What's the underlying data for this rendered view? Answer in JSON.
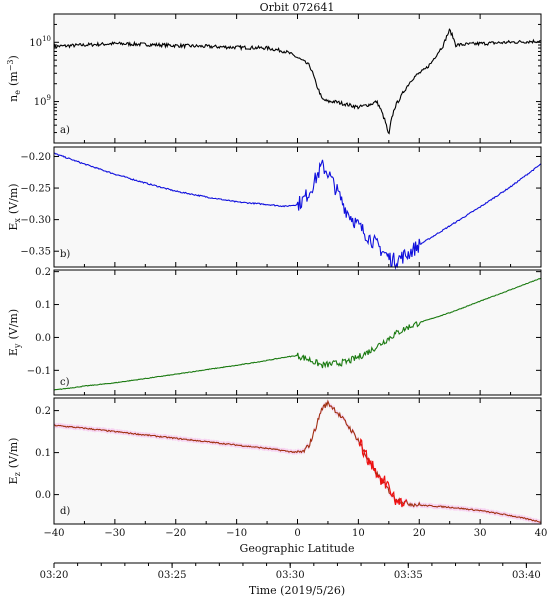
{
  "figure": {
    "title": "Orbit 072641",
    "xlabel": "Geographic Latitude",
    "time_xlabel": "Time (2019/5/26)",
    "colors": {
      "ne": "#000000",
      "ex": "#1010dd",
      "ey": "#1a7a10",
      "ez": "#a03010",
      "ez_highlight": "#ee1111",
      "ez_band": "#f6c6f0",
      "panel_bg": "#f8f8f8"
    }
  },
  "chart_data": [
    {
      "type": "line",
      "panel_label": "a)",
      "ylabel_main": "n",
      "ylabel_sub": "e",
      "ylabel_unit": "(m",
      "ylabel_unit_sup": "−3",
      "ylabel_unit_end": ")",
      "yscale": "log",
      "ylim": [
        200000000.0,
        30000000000.0
      ],
      "yticks": [
        {
          "value": 1000000000.0,
          "base": "10",
          "exp": "9"
        },
        {
          "value": 10000000000.0,
          "base": "10",
          "exp": "10"
        }
      ],
      "xlim": [
        -40,
        40
      ],
      "series": [
        {
          "color": "#000000",
          "x": [
            -40,
            -35,
            -30,
            -25,
            -20,
            -15,
            -10,
            -5,
            -2,
            0,
            2,
            3,
            4,
            5,
            6,
            8,
            10,
            12,
            13,
            14,
            15,
            16,
            17,
            18,
            19,
            20,
            21,
            22,
            23,
            24,
            25,
            26,
            30,
            35,
            40
          ],
          "y": [
            8500000000.0,
            9000000000.0,
            9500000000.0,
            9200000000.0,
            8800000000.0,
            8500000000.0,
            8200000000.0,
            8000000000.0,
            7000000000.0,
            5500000000.0,
            4000000000.0,
            2000000000.0,
            1100000000.0,
            1000000000.0,
            1000000000.0,
            900000000.0,
            800000000.0,
            900000000.0,
            1000000000.0,
            600000000.0,
            250000000.0,
            800000000.0,
            1200000000.0,
            1800000000.0,
            2500000000.0,
            3000000000.0,
            3500000000.0,
            4500000000.0,
            6500000000.0,
            9000000000.0,
            16000000000.0,
            9000000000.0,
            9500000000.0,
            10000000000.0,
            10500000000.0
          ]
        }
      ]
    },
    {
      "type": "line",
      "panel_label": "b)",
      "ylabel_main": "E",
      "ylabel_sub": "x",
      "ylabel_unit": "(V/m)",
      "ylim": [
        -0.375,
        -0.185
      ],
      "yticks": [
        {
          "value": -0.35,
          "label": "−0.35"
        },
        {
          "value": -0.3,
          "label": "−0.30"
        },
        {
          "value": -0.25,
          "label": "−0.25"
        },
        {
          "value": -0.2,
          "label": "−0.20"
        }
      ],
      "xlim": [
        -40,
        40
      ],
      "series": [
        {
          "color": "#1010dd",
          "x": [
            -40,
            -35,
            -30,
            -25,
            -20,
            -15,
            -10,
            -5,
            -2,
            0,
            1,
            2,
            3,
            4,
            5,
            6,
            8,
            10,
            12,
            14,
            15,
            16,
            17,
            18,
            20,
            25,
            30,
            35,
            40
          ],
          "y": [
            -0.195,
            -0.212,
            -0.228,
            -0.242,
            -0.255,
            -0.264,
            -0.272,
            -0.276,
            -0.279,
            -0.276,
            -0.268,
            -0.255,
            -0.235,
            -0.215,
            -0.225,
            -0.245,
            -0.285,
            -0.31,
            -0.33,
            -0.35,
            -0.36,
            -0.365,
            -0.36,
            -0.355,
            -0.34,
            -0.31,
            -0.28,
            -0.248,
            -0.212
          ]
        }
      ]
    },
    {
      "type": "line",
      "panel_label": "c)",
      "ylabel_main": "E",
      "ylabel_sub": "y",
      "ylabel_unit": "(V/m)",
      "ylim": [
        -0.175,
        0.205
      ],
      "yticks": [
        {
          "value": -0.1,
          "label": "−0.1"
        },
        {
          "value": 0.0,
          "label": "0.0"
        },
        {
          "value": 0.1,
          "label": "0.1"
        },
        {
          "value": 0.2,
          "label": "0.2"
        }
      ],
      "xlim": [
        -40,
        40
      ],
      "series": [
        {
          "color": "#1a7a10",
          "x": [
            -40,
            -35,
            -30,
            -25,
            -20,
            -15,
            -10,
            -5,
            -2,
            0,
            2,
            4,
            6,
            8,
            10,
            12,
            14,
            16,
            18,
            20,
            25,
            30,
            35,
            40
          ],
          "y": [
            -0.16,
            -0.148,
            -0.138,
            -0.125,
            -0.112,
            -0.098,
            -0.085,
            -0.07,
            -0.06,
            -0.055,
            -0.068,
            -0.085,
            -0.08,
            -0.075,
            -0.06,
            -0.04,
            -0.015,
            0.01,
            0.03,
            0.045,
            0.075,
            0.11,
            0.145,
            0.18
          ]
        }
      ]
    },
    {
      "type": "line",
      "panel_label": "d)",
      "ylabel_main": "E",
      "ylabel_sub": "z",
      "ylabel_unit": "(V/m)",
      "ylim": [
        -0.07,
        0.23
      ],
      "yticks": [
        {
          "value": 0.0,
          "label": "0.0"
        },
        {
          "value": 0.1,
          "label": "0.1"
        },
        {
          "value": 0.2,
          "label": "0.2"
        }
      ],
      "xlim": [
        -40,
        40
      ],
      "series": [
        {
          "color": "#a03010",
          "x": [
            -40,
            -35,
            -30,
            -25,
            -20,
            -15,
            -10,
            -5,
            -2,
            0,
            1,
            2,
            3,
            4,
            5,
            6,
            8,
            10,
            12,
            14,
            16,
            18,
            20,
            25,
            30,
            35,
            40
          ],
          "y": [
            0.165,
            0.158,
            0.15,
            0.142,
            0.134,
            0.126,
            0.118,
            0.11,
            0.104,
            0.1,
            0.102,
            0.12,
            0.16,
            0.205,
            0.218,
            0.205,
            0.17,
            0.13,
            0.07,
            0.03,
            -0.01,
            -0.02,
            -0.025,
            -0.03,
            -0.038,
            -0.05,
            -0.065
          ]
        }
      ]
    }
  ],
  "xaxis": {
    "ticks": [
      {
        "value": -40,
        "label": "−40"
      },
      {
        "value": -30,
        "label": "−30"
      },
      {
        "value": -20,
        "label": "−20"
      },
      {
        "value": -10,
        "label": "−10"
      },
      {
        "value": 0,
        "label": "0"
      },
      {
        "value": 10,
        "label": "10"
      },
      {
        "value": 20,
        "label": "20"
      },
      {
        "value": 30,
        "label": "30"
      },
      {
        "value": 40,
        "label": "40"
      }
    ]
  },
  "time_axis": {
    "ticks": [
      {
        "value": -40,
        "label": "03:20"
      },
      {
        "value": -20.6,
        "label": "03:25"
      },
      {
        "value": -1.2,
        "label": "03:30"
      },
      {
        "value": 18.2,
        "label": "03:35"
      },
      {
        "value": 37.6,
        "label": "03:40"
      }
    ]
  }
}
